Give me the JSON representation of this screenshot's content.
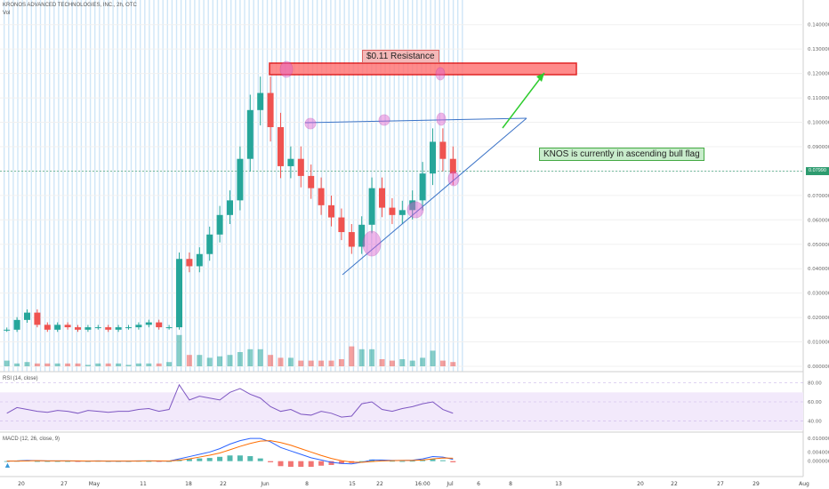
{
  "header": {
    "title": "KRONOS ADVANCED TECHNOLOGIES, INC., 2h, OTC",
    "vol_label": "Vol"
  },
  "annotations": {
    "resistance": "$0.11 Resistance",
    "flag": "KNOS is currently in ascending bull flag"
  },
  "current_price": "0.07990",
  "colors": {
    "up": "#26a69a",
    "down": "#ef5350",
    "session": "#cfe6f7",
    "rsi": "#7e57c2",
    "rsi_band": "#f2e9fb",
    "macd": "#2962ff",
    "signal": "#ff6d00",
    "trend": "#3b73c7",
    "resistance_box": "#f44336",
    "arrow": "#2ecc2e",
    "marker": "#e060d0"
  },
  "icons": {
    "logo": "tradingview-logo-icon"
  },
  "chart_data": [
    {
      "type": "candlestick",
      "title": "KRONOS ADVANCED TECHNOLOGIES, INC., 2h, OTC",
      "ylim": [
        0.0,
        0.145
      ],
      "y_ticks": [
        "0.140000",
        "0.130000",
        "0.120000",
        "0.110000",
        "0.100000",
        "0.090000",
        "0.080000",
        "0.070000",
        "0.060000",
        "0.050000",
        "0.040000",
        "0.030000",
        "0.020000",
        "0.010000",
        "0.000000"
      ],
      "x_ticks": [
        "20",
        "27",
        "May",
        "11",
        "18",
        "22",
        "Jun",
        "8",
        "15",
        "22",
        "16:00",
        "Jul",
        "6",
        "8",
        "13",
        "20",
        "22",
        "27",
        "29",
        "Aug"
      ],
      "series": [
        {
          "name": "price",
          "values": [
            0.015,
            0.019,
            0.022,
            0.017,
            0.015,
            0.017,
            0.016,
            0.015,
            0.016,
            0.016,
            0.015,
            0.016,
            0.016,
            0.017,
            0.018,
            0.016,
            0.016,
            0.044,
            0.041,
            0.046,
            0.054,
            0.062,
            0.068,
            0.085,
            0.105,
            0.112,
            0.098,
            0.082,
            0.085,
            0.078,
            0.073,
            0.066,
            0.061,
            0.055,
            0.049,
            0.058,
            0.073,
            0.065,
            0.062,
            0.064,
            0.068,
            0.079,
            0.092,
            0.085,
            0.079
          ]
        },
        {
          "name": "Vol",
          "values": [
            0.004,
            0.002,
            0.003,
            0.002,
            0.002,
            0.002,
            0.002,
            0.002,
            0.001,
            0.002,
            0.002,
            0.002,
            0.001,
            0.002,
            0.002,
            0.002,
            0.003,
            0.022,
            0.008,
            0.008,
            0.006,
            0.007,
            0.008,
            0.01,
            0.012,
            0.012,
            0.008,
            0.006,
            0.006,
            0.004,
            0.004,
            0.004,
            0.004,
            0.005,
            0.014,
            0.012,
            0.012,
            0.005,
            0.004,
            0.005,
            0.004,
            0.006,
            0.011,
            0.004,
            0.003
          ]
        }
      ],
      "current": 0.0799
    },
    {
      "type": "line",
      "title": "RSI (14, close)",
      "ylim": [
        30,
        90
      ],
      "y_ticks": [
        "80.00",
        "60.00",
        "40.00"
      ],
      "series": [
        {
          "name": "RSI",
          "values": [
            48,
            54,
            52,
            50,
            49,
            51,
            50,
            48,
            51,
            50,
            49,
            50,
            50,
            52,
            53,
            50,
            52,
            78,
            62,
            66,
            64,
            62,
            70,
            74,
            68,
            64,
            55,
            50,
            52,
            47,
            46,
            50,
            48,
            44,
            45,
            58,
            60,
            52,
            50,
            53,
            55,
            58,
            60,
            52,
            48
          ]
        }
      ]
    },
    {
      "type": "line",
      "title": "MACD (12, 26, close, 9)",
      "ylim": [
        -0.006,
        0.012
      ],
      "y_ticks": [
        "0.010000",
        "0.004000",
        "0.000000"
      ],
      "series": [
        {
          "name": "MACD",
          "values": [
            0.0,
            0.0001,
            0.0003,
            0.0002,
            0.0001,
            0.0001,
            0.0001,
            0.0,
            0.0,
            0.0001,
            0.0,
            0.0,
            0.0,
            0.0001,
            0.0001,
            0.0,
            0.0,
            0.001,
            0.002,
            0.003,
            0.004,
            0.0055,
            0.0075,
            0.009,
            0.01,
            0.01,
            0.0085,
            0.006,
            0.0045,
            0.003,
            0.0015,
            0.0005,
            -0.0005,
            -0.001,
            -0.0012,
            -0.0005,
            0.0005,
            0.0005,
            0.0003,
            0.0003,
            0.0004,
            0.001,
            0.002,
            0.0018,
            0.0008
          ]
        },
        {
          "name": "Signal",
          "values": [
            0.0,
            0.0,
            0.0001,
            0.0002,
            0.0001,
            0.0001,
            0.0001,
            0.0001,
            0.0,
            0.0,
            0.0,
            0.0,
            0.0,
            0.0,
            0.0001,
            0.0001,
            0.0,
            0.0004,
            0.001,
            0.0018,
            0.0026,
            0.0036,
            0.005,
            0.0065,
            0.0078,
            0.0088,
            0.009,
            0.0082,
            0.007,
            0.0055,
            0.004,
            0.0025,
            0.0012,
            0.0002,
            -0.0004,
            -0.0005,
            -0.0002,
            0.0001,
            0.0002,
            0.0003,
            0.0003,
            0.0005,
            0.001,
            0.0014,
            0.0013
          ]
        }
      ]
    }
  ]
}
